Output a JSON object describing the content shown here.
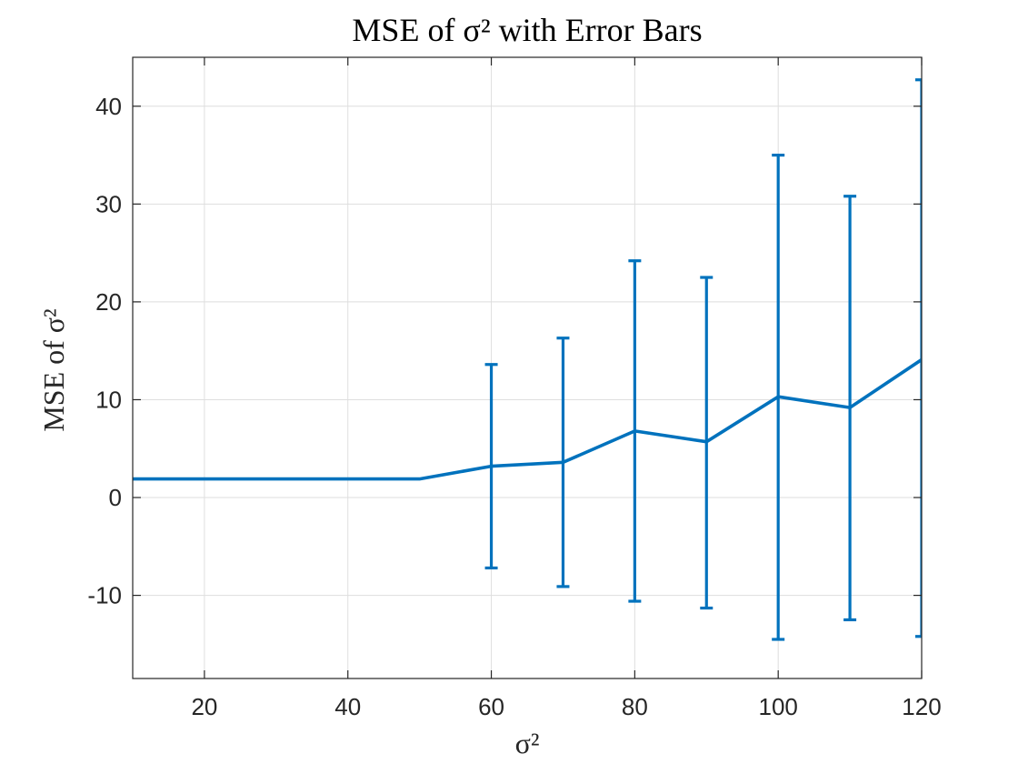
{
  "chart_data": {
    "type": "line",
    "title": "MSE of σ² with Error Bars",
    "xlabel": "σ²",
    "ylabel": "MSE of σ²",
    "xlim": [
      10,
      120
    ],
    "ylim": [
      -18.5,
      45
    ],
    "xticks": [
      20,
      40,
      60,
      80,
      100,
      120
    ],
    "yticks": [
      -10,
      0,
      10,
      20,
      30,
      40
    ],
    "grid": true,
    "line_color": "#0072BD",
    "series": [
      {
        "x": [
          10,
          20,
          30,
          40,
          50,
          60,
          70,
          80,
          90,
          100,
          110,
          120
        ],
        "y": [
          1.9,
          1.9,
          1.9,
          1.9,
          1.9,
          3.2,
          3.6,
          6.8,
          5.7,
          10.3,
          9.2,
          14.1
        ],
        "error_bars": [
          null,
          null,
          null,
          null,
          null,
          [
            -7.2,
            13.6
          ],
          [
            -9.1,
            16.3
          ],
          [
            -10.6,
            24.2
          ],
          [
            -11.3,
            22.5
          ],
          [
            -14.5,
            35.0
          ],
          [
            -12.5,
            30.8
          ],
          [
            -14.2,
            42.7
          ]
        ]
      }
    ]
  }
}
